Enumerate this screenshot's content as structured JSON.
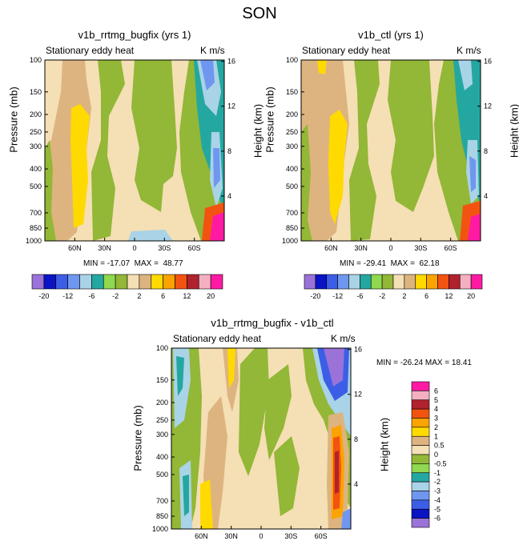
{
  "figure_title": "SON",
  "colors": {
    "fill": [
      "#9a72d8",
      "#0a14c4",
      "#3c5ee6",
      "#6f97f0",
      "#a9d3e6",
      "#25a7a1",
      "#90d84f",
      "#93b736",
      "#f5dfb5",
      "#ddb47f",
      "#ffda00",
      "#fba300",
      "#f35310",
      "#b0222e",
      "#f4b0c0",
      "#ff1aa4"
    ]
  },
  "chart_data": [
    {
      "type": "heatmap",
      "panel": "left",
      "title": "v1b_rrtmg_bugfix (yrs 1)",
      "left_subtitle": "Stationary eddy heat",
      "right_subtitle": "K m/s",
      "ylabel": "Pressure (mb)",
      "y2label": "Height (km)",
      "pressure_ticks": [
        "100",
        "150",
        "200",
        "250",
        "300",
        "400",
        "500",
        "700",
        "850",
        "1000"
      ],
      "height_ticks": [
        "16",
        "12",
        "8",
        "4"
      ],
      "lat_ticks": [
        "60N",
        "30N",
        "0",
        "30S",
        "60S"
      ],
      "min": "-17.07",
      "max": "48.77",
      "contour_levels": [
        "-20",
        "-16",
        "-12",
        "-8",
        "-6",
        "-4",
        "-2",
        "0",
        "2",
        "4",
        "6",
        "8",
        "12",
        "16",
        "20"
      ],
      "colorbar_labels": [
        "-20",
        "-12",
        "-6",
        "-2",
        "2",
        "6",
        "12",
        "20"
      ]
    },
    {
      "type": "heatmap",
      "panel": "right",
      "title": "v1b_ctl (yrs 1)",
      "left_subtitle": "Stationary eddy heat",
      "right_subtitle": "K m/s",
      "ylabel": "Pressure (mb)",
      "y2label": "Height (km)",
      "pressure_ticks": [
        "100",
        "150",
        "200",
        "250",
        "300",
        "400",
        "500",
        "700",
        "850",
        "1000"
      ],
      "height_ticks": [
        "16",
        "12",
        "8",
        "4"
      ],
      "lat_ticks": [
        "60N",
        "30N",
        "0",
        "30S",
        "60S"
      ],
      "min": "-29.41",
      "max": "62.18",
      "contour_levels": [
        "-20",
        "-16",
        "-12",
        "-8",
        "-6",
        "-4",
        "-2",
        "0",
        "2",
        "4",
        "6",
        "8",
        "12",
        "16",
        "20"
      ],
      "colorbar_labels": [
        "-20",
        "-12",
        "-6",
        "-2",
        "2",
        "6",
        "12",
        "20"
      ]
    },
    {
      "type": "heatmap",
      "panel": "bottom",
      "title": "v1b_rrtmg_bugfix - v1b_ctl",
      "left_subtitle": "Stationary eddy heat",
      "right_subtitle": "K m/s",
      "ylabel": "Pressure (mb)",
      "y2label": "Height (km)",
      "pressure_ticks": [
        "100",
        "150",
        "200",
        "250",
        "300",
        "400",
        "500",
        "700",
        "850",
        "1000"
      ],
      "height_ticks": [
        "16",
        "12",
        "8",
        "4"
      ],
      "lat_ticks": [
        "60N",
        "30N",
        "0",
        "30S",
        "60S"
      ],
      "stats": "MIN = -26.24  MAX =  18.41",
      "contour_levels": [
        "-6",
        "-5",
        "-4",
        "-3",
        "-2",
        "-1",
        "-0.5",
        "0",
        "0.5",
        "1",
        "2",
        "3",
        "4",
        "5",
        "6"
      ],
      "colorbar_labels": [
        "6",
        "5",
        "4",
        "3",
        "2",
        "1",
        "0.5",
        "0",
        "-0.5",
        "-1",
        "-2",
        "-3",
        "-4",
        "-5",
        "-6"
      ]
    }
  ]
}
